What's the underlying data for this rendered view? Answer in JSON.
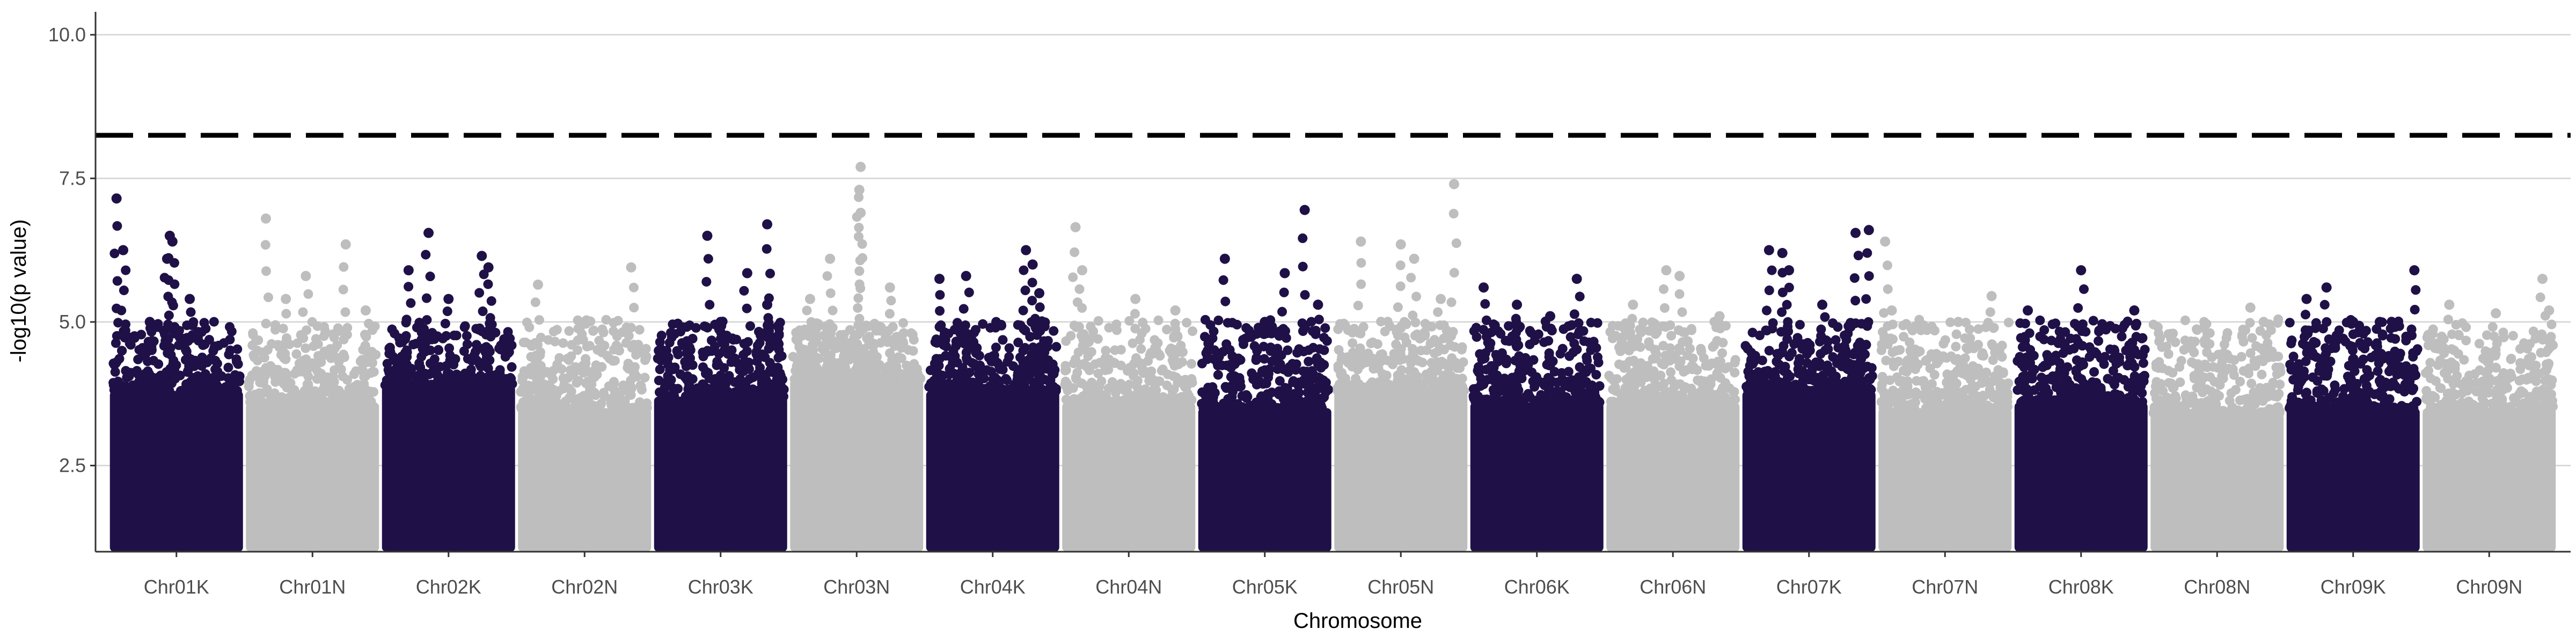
{
  "chart_data": {
    "type": "scatter",
    "subtype": "manhattan",
    "title": "",
    "xlabel": "Chromosome",
    "ylabel": "-log10(p value)",
    "ylim": [
      1.0,
      10.4
    ],
    "yticks": [
      2.5,
      5.0,
      7.5,
      10.0
    ],
    "ytick_labels": [
      "2.5",
      "5.0",
      "7.5",
      "10.0"
    ],
    "grid": "horizontal major gridlines",
    "legend": "none",
    "threshold": {
      "value": 8.25,
      "style": "dashed",
      "color": "#000000"
    },
    "colors": {
      "odd": "#1f1147",
      "even": "#bebebe"
    },
    "categories": [
      "Chr01K",
      "Chr01N",
      "Chr02K",
      "Chr02N",
      "Chr03K",
      "Chr03N",
      "Chr04K",
      "Chr04N",
      "Chr05K",
      "Chr05N",
      "Chr06K",
      "Chr06N",
      "Chr07K",
      "Chr07N",
      "Chr08K",
      "Chr08N",
      "Chr09K",
      "Chr09N"
    ],
    "series": [
      {
        "chromosome": "Chr01K",
        "color": "#1f1147",
        "min": 1.0,
        "core_top": 3.8,
        "outliers": [
          [
            0.05,
            7.15
          ],
          [
            0.45,
            6.5
          ],
          [
            0.47,
            6.4
          ],
          [
            0.43,
            6.1
          ],
          [
            0.1,
            6.25
          ],
          [
            0.6,
            5.4
          ],
          [
            0.3,
            5.0
          ]
        ]
      },
      {
        "chromosome": "Chr01N",
        "color": "#bebebe",
        "min": 1.0,
        "core_top": 3.6,
        "outliers": [
          [
            0.15,
            6.8
          ],
          [
            0.75,
            6.35
          ],
          [
            0.45,
            5.8
          ],
          [
            0.3,
            5.4
          ],
          [
            0.9,
            5.2
          ]
        ]
      },
      {
        "chromosome": "Chr02K",
        "color": "#1f1147",
        "min": 1.0,
        "core_top": 3.9,
        "outliers": [
          [
            0.35,
            6.55
          ],
          [
            0.75,
            6.15
          ],
          [
            0.8,
            5.95
          ],
          [
            0.2,
            5.9
          ],
          [
            0.5,
            5.4
          ]
        ]
      },
      {
        "chromosome": "Chr02N",
        "color": "#bebebe",
        "min": 1.0,
        "core_top": 3.5,
        "outliers": [
          [
            0.85,
            5.95
          ],
          [
            0.15,
            5.65
          ],
          [
            0.5,
            5.0
          ]
        ]
      },
      {
        "chromosome": "Chr03K",
        "color": "#1f1147",
        "min": 1.0,
        "core_top": 3.7,
        "outliers": [
          [
            0.85,
            6.7
          ],
          [
            0.4,
            6.5
          ],
          [
            0.7,
            5.85
          ],
          [
            0.85,
            5.3
          ],
          [
            0.5,
            5.0
          ]
        ]
      },
      {
        "chromosome": "Chr03N",
        "color": "#bebebe",
        "min": 1.0,
        "core_top": 4.0,
        "outliers": [
          [
            0.53,
            7.7
          ],
          [
            0.52,
            7.3
          ],
          [
            0.53,
            6.9
          ],
          [
            0.3,
            6.1
          ],
          [
            0.75,
            5.6
          ],
          [
            0.15,
            5.4
          ]
        ]
      },
      {
        "chromosome": "Chr04K",
        "color": "#1f1147",
        "min": 1.0,
        "core_top": 3.8,
        "outliers": [
          [
            0.75,
            6.25
          ],
          [
            0.8,
            6.0
          ],
          [
            0.1,
            5.75
          ],
          [
            0.3,
            5.8
          ],
          [
            0.85,
            5.5
          ]
        ]
      },
      {
        "chromosome": "Chr04N",
        "color": "#bebebe",
        "min": 1.0,
        "core_top": 3.6,
        "outliers": [
          [
            0.1,
            6.65
          ],
          [
            0.15,
            5.9
          ],
          [
            0.55,
            5.4
          ],
          [
            0.85,
            5.2
          ]
        ]
      },
      {
        "chromosome": "Chr05K",
        "color": "#1f1147",
        "min": 1.0,
        "core_top": 3.5,
        "outliers": [
          [
            0.8,
            6.95
          ],
          [
            0.2,
            6.1
          ],
          [
            0.65,
            5.85
          ],
          [
            0.9,
            5.3
          ],
          [
            0.5,
            5.0
          ]
        ]
      },
      {
        "chromosome": "Chr05N",
        "color": "#bebebe",
        "min": 1.0,
        "core_top": 3.8,
        "outliers": [
          [
            0.9,
            7.4
          ],
          [
            0.2,
            6.4
          ],
          [
            0.5,
            6.35
          ],
          [
            0.6,
            6.1
          ],
          [
            0.8,
            5.4
          ]
        ]
      },
      {
        "chromosome": "Chr06K",
        "color": "#1f1147",
        "min": 1.0,
        "core_top": 3.6,
        "outliers": [
          [
            0.1,
            5.6
          ],
          [
            0.8,
            5.75
          ],
          [
            0.35,
            5.3
          ],
          [
            0.6,
            5.1
          ]
        ]
      },
      {
        "chromosome": "Chr06N",
        "color": "#bebebe",
        "min": 1.0,
        "core_top": 3.6,
        "outliers": [
          [
            0.45,
            5.9
          ],
          [
            0.55,
            5.8
          ],
          [
            0.2,
            5.3
          ],
          [
            0.85,
            5.1
          ]
        ]
      },
      {
        "chromosome": "Chr07K",
        "color": "#1f1147",
        "min": 1.0,
        "core_top": 3.8,
        "outliers": [
          [
            0.95,
            6.6
          ],
          [
            0.85,
            6.55
          ],
          [
            0.2,
            6.25
          ],
          [
            0.3,
            6.2
          ],
          [
            0.35,
            5.9
          ],
          [
            0.6,
            5.3
          ]
        ]
      },
      {
        "chromosome": "Chr07N",
        "color": "#bebebe",
        "min": 1.0,
        "core_top": 3.5,
        "outliers": [
          [
            0.05,
            6.4
          ],
          [
            0.1,
            5.2
          ],
          [
            0.6,
            5.0
          ],
          [
            0.85,
            5.45
          ]
        ]
      },
      {
        "chromosome": "Chr08K",
        "color": "#1f1147",
        "min": 1.0,
        "core_top": 3.6,
        "outliers": [
          [
            0.5,
            5.9
          ],
          [
            0.1,
            5.2
          ],
          [
            0.9,
            5.2
          ],
          [
            0.35,
            4.8
          ]
        ]
      },
      {
        "chromosome": "Chr08N",
        "color": "#bebebe",
        "min": 1.0,
        "core_top": 3.4,
        "outliers": [
          [
            0.75,
            5.25
          ],
          [
            0.4,
            4.9
          ],
          [
            0.85,
            5.0
          ]
        ]
      },
      {
        "chromosome": "Chr09K",
        "color": "#1f1147",
        "min": 1.0,
        "core_top": 3.5,
        "outliers": [
          [
            0.96,
            5.9
          ],
          [
            0.3,
            5.6
          ],
          [
            0.5,
            5.0
          ],
          [
            0.15,
            5.4
          ],
          [
            0.7,
            5.0
          ]
        ]
      },
      {
        "chromosome": "Chr09N",
        "color": "#bebebe",
        "min": 1.0,
        "core_top": 3.5,
        "outliers": [
          [
            0.9,
            5.75
          ],
          [
            0.2,
            5.3
          ],
          [
            0.55,
            5.15
          ],
          [
            0.95,
            5.2
          ]
        ]
      }
    ]
  }
}
